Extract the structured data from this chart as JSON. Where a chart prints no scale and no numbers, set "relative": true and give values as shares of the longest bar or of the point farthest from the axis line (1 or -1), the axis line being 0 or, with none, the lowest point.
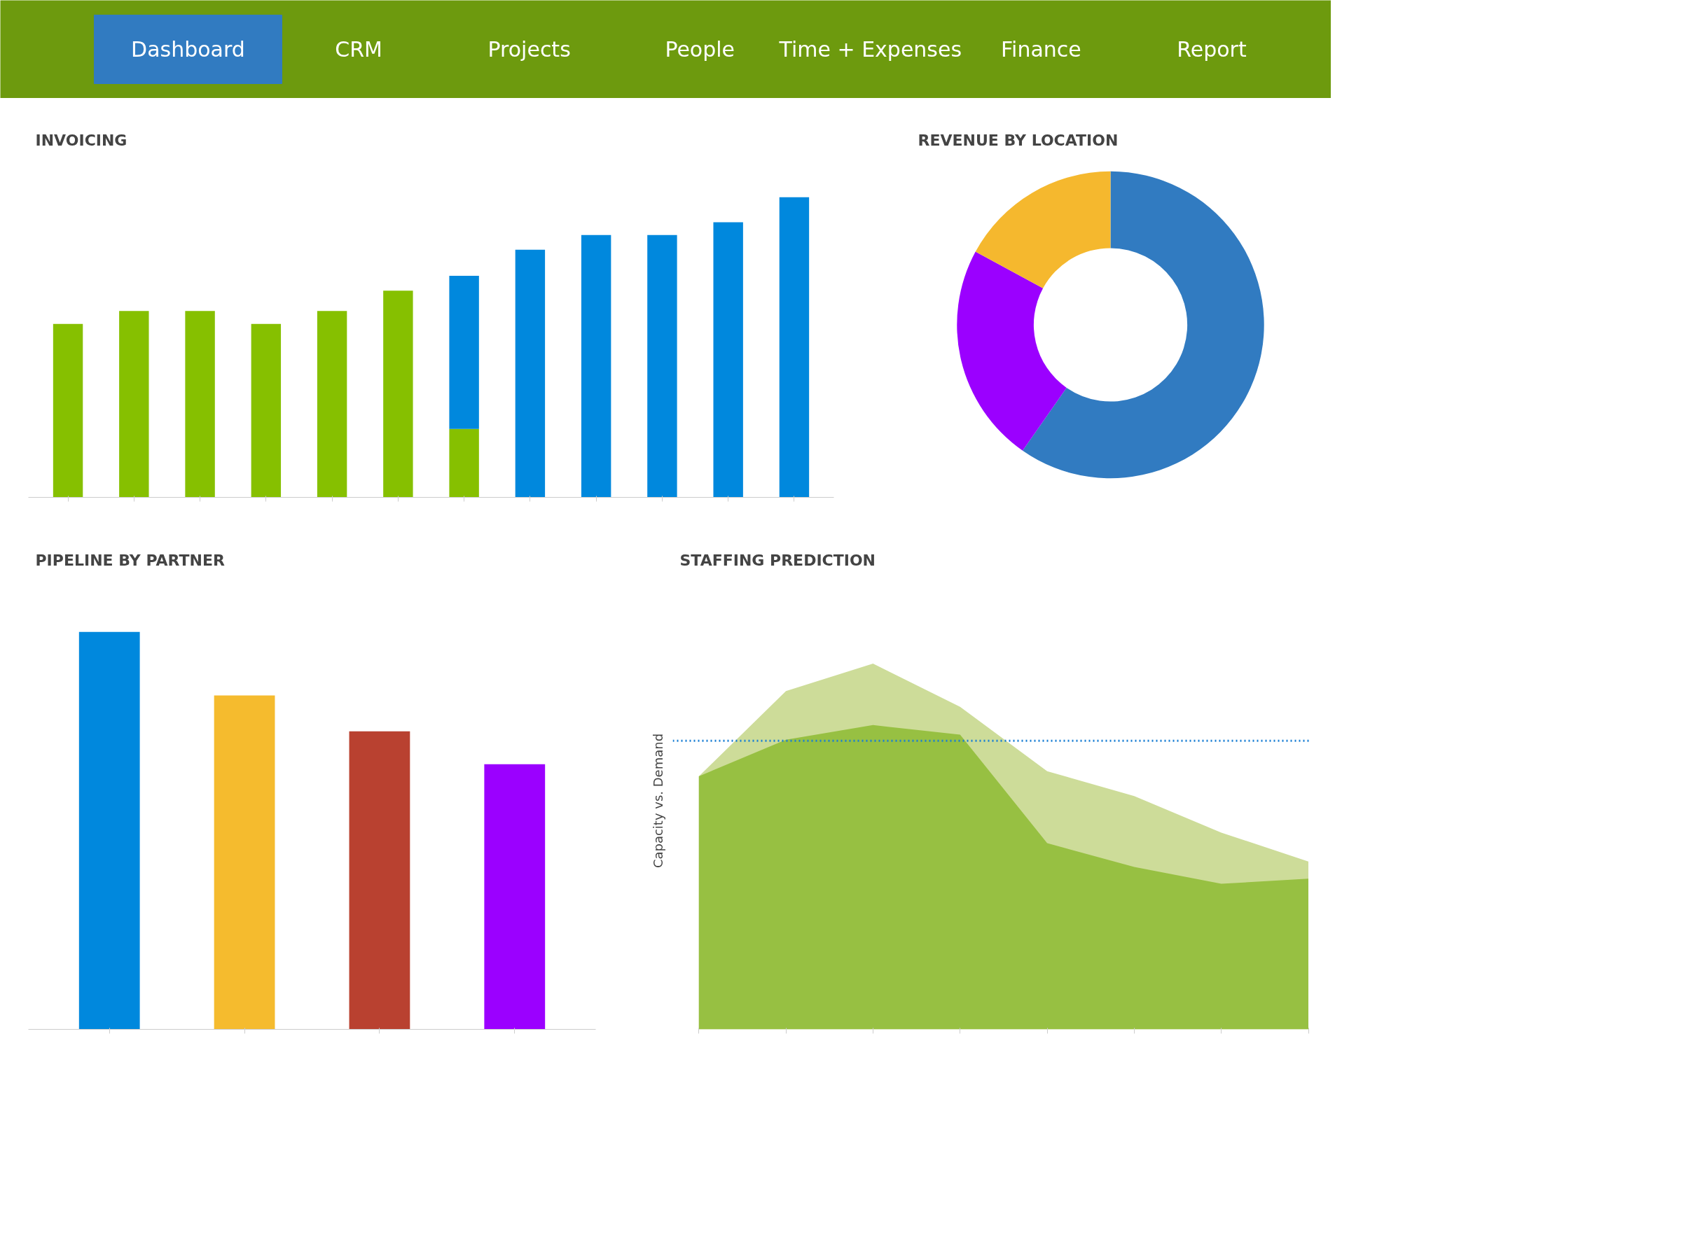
{
  "chart_data": [
    {
      "type": "other",
      "annotations": [
        "Dashboard",
        "CRM",
        "Projects",
        "People",
        "Time + Expenses",
        "Finance",
        "Report"
      ]
    },
    {
      "type": "bar",
      "title": "INVOICING",
      "relative": true,
      "stacked": true,
      "categories": [
        null,
        null,
        null,
        null,
        null,
        null,
        null,
        null,
        null,
        null,
        null,
        null
      ],
      "series": [
        {
          "color": "#86c000",
          "values": [
            0.578,
            0.621,
            0.621,
            0.578,
            0.621,
            0.689,
            0.228,
            null,
            null,
            null,
            null,
            null
          ]
        },
        {
          "color": "#0088dd",
          "values": [
            null,
            null,
            null,
            null,
            null,
            null,
            0.51,
            0.825,
            0.874,
            0.874,
            0.917,
            1.0
          ]
        }
      ]
    },
    {
      "type": "donut",
      "title": "REVENUE BY LOCATION",
      "categories": [
        null,
        null,
        null
      ],
      "values": [
        59.7,
        23.2,
        17.1
      ],
      "colors": [
        "#317bc1",
        "#9b00ff",
        "#f5b82e"
      ]
    },
    {
      "type": "bar",
      "title": "PIPELINE BY PARTNER",
      "relative": true,
      "categories": [
        null,
        null,
        null,
        null
      ],
      "values": [
        1.0,
        0.84,
        0.75,
        0.667
      ],
      "colors": [
        "#0088dd",
        "#f5bb2e",
        "#b94130",
        "#9b00ff"
      ]
    },
    {
      "type": "area",
      "title": "STAFFING PREDICTION",
      "ylabel": "Capacity vs. Demand",
      "relative": true,
      "categories": [
        null,
        null,
        null,
        null,
        null,
        null,
        null,
        null
      ],
      "series": [
        {
          "color": "#cddc99",
          "values": [
            0.692,
            0.925,
            1.0,
            0.882,
            0.706,
            0.638,
            0.538,
            0.459
          ]
        },
        {
          "color": "#97c042",
          "values": [
            0.692,
            0.792,
            0.832,
            0.806,
            0.509,
            0.444,
            0.398,
            0.412
          ]
        }
      ],
      "ref_lines": [
        {
          "axis": "y",
          "value": 0.789,
          "color": "#1a7fd4",
          "line_style": "dotted"
        }
      ]
    }
  ]
}
